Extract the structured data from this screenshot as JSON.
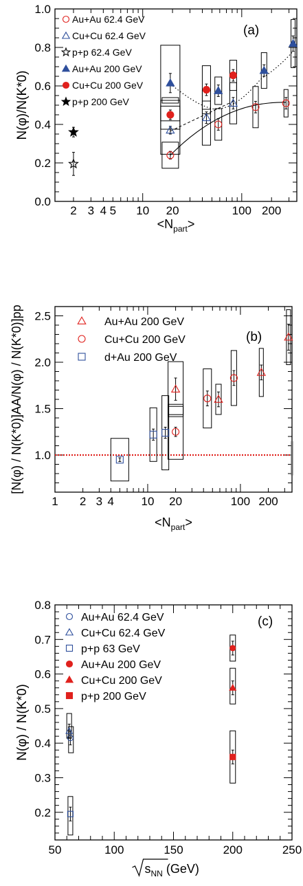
{
  "chart_data": [
    {
      "type": "scatter",
      "panel_label": "(a)",
      "xlabel_main": "<N",
      "xlabel_sub": "part",
      "xlabel_end": ">",
      "ylabel": "N(φ)/N(K*0)",
      "xscale": "log",
      "xlim": [
        1.3,
        360
      ],
      "ylim": [
        0,
        1.0
      ],
      "yticks": [
        "0.0",
        "0.2",
        "0.4",
        "0.6",
        "0.8",
        "1.0"
      ],
      "xticks": [
        "2",
        "3",
        "4",
        "5",
        "10",
        "20",
        "100",
        "200"
      ],
      "legend": [
        "Au+Au 62.4 GeV",
        "Cu+Cu 62.4  GeV",
        "p+p 62.4  GeV",
        "Au+Au 200  GeV",
        "Cu+Cu 200  GeV",
        "p+p 200 GeV"
      ],
      "series": [
        {
          "name": "Au+Au 62.4 GeV",
          "marker": "open-circle",
          "color": "#e0211d",
          "points": [
            {
              "x": 19,
              "y": 0.24,
              "err": 0.02
            },
            {
              "x": 58,
              "y": 0.4,
              "err": 0.03
            },
            {
              "x": 138,
              "y": 0.49,
              "err": 0.03
            },
            {
              "x": 280,
              "y": 0.51,
              "err": 0.03
            }
          ]
        },
        {
          "name": "Cu+Cu 62.4  GeV",
          "marker": "open-triangle",
          "color": "#2e4f9c",
          "points": [
            {
              "x": 19,
              "y": 0.37,
              "err": 0.02
            },
            {
              "x": 44,
              "y": 0.435,
              "err": 0.03
            },
            {
              "x": 82,
              "y": 0.51,
              "err": 0.03
            }
          ]
        },
        {
          "name": "p+p 62.4  GeV",
          "marker": "open-star",
          "color": "#000000",
          "points": [
            {
              "x": 2,
              "y": 0.195,
              "err": 0.06
            }
          ]
        },
        {
          "name": "Au+Au 200  GeV",
          "marker": "filled-triangle",
          "color": "#2e4f9c",
          "points": [
            {
              "x": 19,
              "y": 0.615,
              "err": 0.05
            },
            {
              "x": 58,
              "y": 0.575,
              "err": 0.03
            },
            {
              "x": 168,
              "y": 0.68,
              "err": 0.03
            },
            {
              "x": 330,
              "y": 0.82,
              "err": 0.04
            }
          ]
        },
        {
          "name": "Cu+Cu 200  GeV",
          "marker": "filled-circle",
          "color": "#e0211d",
          "points": [
            {
              "x": 19,
              "y": 0.45,
              "err": 0.025
            },
            {
              "x": 44,
              "y": 0.58,
              "err": 0.03
            },
            {
              "x": 82,
              "y": 0.655,
              "err": 0.03
            }
          ]
        },
        {
          "name": "p+p 200 GeV",
          "marker": "filled-star",
          "color": "#000000",
          "points": [
            {
              "x": 2,
              "y": 0.36,
              "err": 0.025
            }
          ]
        }
      ]
    },
    {
      "type": "scatter",
      "panel_label": "(b)",
      "xlabel_main": "<N",
      "xlabel_sub": "part",
      "xlabel_end": ">",
      "ylabel": "[N(φ) / N(K*0)]AA/N(φ) / N(K*0)]pp",
      "xscale": "log",
      "xlim": [
        1,
        360
      ],
      "ylim": [
        0.6,
        2.6
      ],
      "reference_line": 1.0,
      "yticks": [
        "1.0",
        "1.5",
        "2.0",
        "2.5"
      ],
      "xticks": [
        "1",
        "2",
        "3",
        "4",
        "10",
        "20",
        "100",
        "200"
      ],
      "legend": [
        "Au+Au 200 GeV",
        "Cu+Cu 200 GeV",
        "d+Au  200 GeV"
      ],
      "series": [
        {
          "name": "Au+Au 200 GeV",
          "marker": "open-triangle",
          "color": "#e0211d",
          "points": [
            {
              "x": 20,
              "y": 1.71,
              "err": 0.12
            },
            {
              "x": 58,
              "y": 1.6,
              "err": 0.08
            },
            {
              "x": 168,
              "y": 1.89,
              "err": 0.08
            },
            {
              "x": 330,
              "y": 2.27,
              "err": 0.14
            }
          ]
        },
        {
          "name": "Cu+Cu 200 GeV",
          "marker": "open-circle",
          "color": "#e0211d",
          "points": [
            {
              "x": 20,
              "y": 1.25,
              "err": 0.05
            },
            {
              "x": 44,
              "y": 1.61,
              "err": 0.08
            },
            {
              "x": 85,
              "y": 1.83,
              "err": 0.08
            }
          ]
        },
        {
          "name": "d+Au  200 GeV",
          "marker": "open-square",
          "color": "#2e4f9c",
          "points": [
            {
              "x": 5,
              "y": 0.95,
              "err": 0.02
            },
            {
              "x": 11.5,
              "y": 1.22,
              "err": 0.06
            },
            {
              "x": 15.5,
              "y": 1.24,
              "err": 0.06
            }
          ]
        }
      ]
    },
    {
      "type": "scatter",
      "panel_label": "(c)",
      "xlabel_main": "s",
      "xlabel_sub": "NN",
      "xlabel_end": " (GeV)",
      "ylabel": "N(φ) / N(K*0)",
      "xlim": [
        50,
        250
      ],
      "ylim": [
        0.12,
        0.8
      ],
      "yticks": [
        "0.2",
        "0.3",
        "0.4",
        "0.5",
        "0.6",
        "0.7",
        "0.8"
      ],
      "xticks": [
        "50",
        "100",
        "150",
        "200",
        "250"
      ],
      "legend": [
        "Au+Au 62.4 GeV",
        "Cu+Cu 62.4  GeV",
        "p+p   63  GeV",
        "Au+Au 200 GeV",
        "Cu+Cu 200  GeV",
        "p+p   200 GeV"
      ],
      "series": [
        {
          "name": "Au+Au 62.4 GeV",
          "marker": "open-circle",
          "color": "#2e4f9c",
          "points": [
            {
              "x": 63,
              "y": 0.415,
              "err": 0.02
            }
          ]
        },
        {
          "name": "Cu+Cu 62.4  GeV",
          "marker": "open-triangle",
          "color": "#2e4f9c",
          "points": [
            {
              "x": 62,
              "y": 0.435,
              "err": 0.02
            }
          ]
        },
        {
          "name": "p+p   63  GeV",
          "marker": "open-square",
          "color": "#2e4f9c",
          "points": [
            {
              "x": 63,
              "y": 0.195,
              "err": 0.02
            }
          ]
        },
        {
          "name": "Au+Au 200 GeV",
          "marker": "filled-circle",
          "color": "#e0211d",
          "points": [
            {
              "x": 200,
              "y": 0.675,
              "err": 0.02
            }
          ]
        },
        {
          "name": "Cu+Cu 200  GeV",
          "marker": "filled-triangle",
          "color": "#e0211d",
          "points": [
            {
              "x": 200,
              "y": 0.56,
              "err": 0.02
            }
          ]
        },
        {
          "name": "p+p   200 GeV",
          "marker": "filled-square",
          "color": "#e0211d",
          "points": [
            {
              "x": 200,
              "y": 0.36,
              "err": 0.02
            }
          ]
        }
      ]
    }
  ]
}
